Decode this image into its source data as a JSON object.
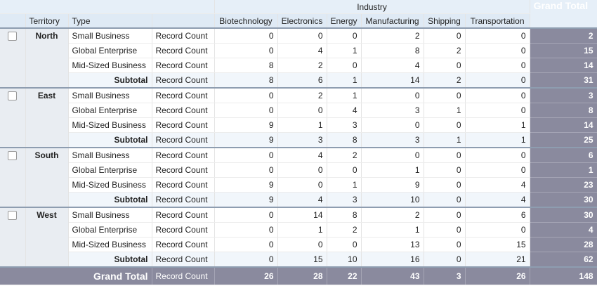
{
  "header": {
    "industry": "Industry",
    "grand_total": "Grand Total",
    "territory": "Territory",
    "type": "Type",
    "columns": [
      "Biotechnology",
      "Electronics",
      "Energy",
      "Manufacturing",
      "Shipping",
      "Transportation"
    ]
  },
  "groups": [
    {
      "territory": "North",
      "rows": [
        {
          "type": "Small Business",
          "measure": "Record Count",
          "values": [
            0,
            0,
            0,
            2,
            0,
            0
          ],
          "total": 2
        },
        {
          "type": "Global Enterprise",
          "measure": "Record Count",
          "values": [
            0,
            4,
            1,
            8,
            2,
            0
          ],
          "total": 15
        },
        {
          "type": "Mid-Sized Business",
          "measure": "Record Count",
          "values": [
            8,
            2,
            0,
            4,
            0,
            0
          ],
          "total": 14
        }
      ],
      "subtotal": {
        "label": "Subtotal",
        "measure": "Record Count",
        "values": [
          8,
          6,
          1,
          14,
          2,
          0
        ],
        "total": 31
      }
    },
    {
      "territory": "East",
      "rows": [
        {
          "type": "Small Business",
          "measure": "Record Count",
          "values": [
            0,
            2,
            1,
            0,
            0,
            0
          ],
          "total": 3
        },
        {
          "type": "Global Enterprise",
          "measure": "Record Count",
          "values": [
            0,
            0,
            4,
            3,
            1,
            0
          ],
          "total": 8
        },
        {
          "type": "Mid-Sized Business",
          "measure": "Record Count",
          "values": [
            9,
            1,
            3,
            0,
            0,
            1
          ],
          "total": 14
        }
      ],
      "subtotal": {
        "label": "Subtotal",
        "measure": "Record Count",
        "values": [
          9,
          3,
          8,
          3,
          1,
          1
        ],
        "total": 25
      }
    },
    {
      "territory": "South",
      "rows": [
        {
          "type": "Small Business",
          "measure": "Record Count",
          "values": [
            0,
            4,
            2,
            0,
            0,
            0
          ],
          "total": 6
        },
        {
          "type": "Global Enterprise",
          "measure": "Record Count",
          "values": [
            0,
            0,
            0,
            1,
            0,
            0
          ],
          "total": 1
        },
        {
          "type": "Mid-Sized Business",
          "measure": "Record Count",
          "values": [
            9,
            0,
            1,
            9,
            0,
            4
          ],
          "total": 23
        }
      ],
      "subtotal": {
        "label": "Subtotal",
        "measure": "Record Count",
        "values": [
          9,
          4,
          3,
          10,
          0,
          4
        ],
        "total": 30
      }
    },
    {
      "territory": "West",
      "rows": [
        {
          "type": "Small Business",
          "measure": "Record Count",
          "values": [
            0,
            14,
            8,
            2,
            0,
            6
          ],
          "total": 30
        },
        {
          "type": "Global Enterprise",
          "measure": "Record Count",
          "values": [
            0,
            1,
            2,
            1,
            0,
            0
          ],
          "total": 4
        },
        {
          "type": "Mid-Sized Business",
          "measure": "Record Count",
          "values": [
            0,
            0,
            0,
            13,
            0,
            15
          ],
          "total": 28
        }
      ],
      "subtotal": {
        "label": "Subtotal",
        "measure": "Record Count",
        "values": [
          0,
          15,
          10,
          16,
          0,
          21
        ],
        "total": 62
      }
    }
  ],
  "grand_total": {
    "label": "Grand Total",
    "measure": "Record Count",
    "values": [
      26,
      28,
      22,
      43,
      3,
      26
    ],
    "total": 148
  }
}
